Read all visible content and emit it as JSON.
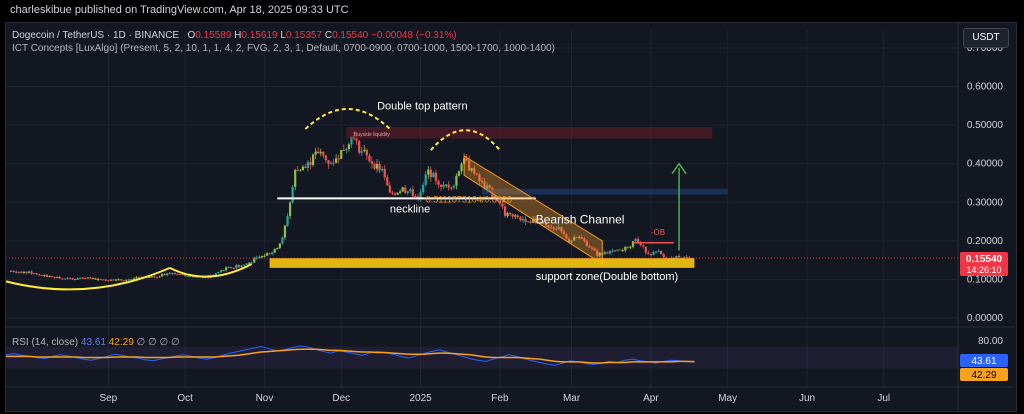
{
  "header": {
    "publisher": "charleskibue published on TradingView.com, Apr 18, 2025 09:33 UTC"
  },
  "symbol_line": {
    "name": "Dogecoin / TetherUS · 1D · BINANCE",
    "o_label": "O",
    "o_value": "0.15589",
    "h_label": "H",
    "h_value": "0.15619",
    "l_label": "L",
    "l_value": "0.15357",
    "c_label": "C",
    "c_value": "0.15540",
    "change": "−0.00048 (−0.31%)"
  },
  "indicator_line": "ICT Concepts [LuxAlgo] (Present, 5, 2, 10, 1, 1, 4, 2, FVG, 2, 3, 1, Default, 0700-0900, 0700-1000, 1500-1700, 1000-1400)",
  "currency_button": "USDT",
  "annotations": {
    "double_top": "Double top pattern",
    "neckline": "neckline",
    "bearish_channel": "Bearish Channel",
    "support_zone": "support zone(Double bottom)",
    "ob": "-OB",
    "buyside": "Buyside liquidity",
    "fib_text": "0.5111873104/0.8626"
  },
  "price_badge": {
    "price": "0.15540",
    "countdown": "14:26:10"
  },
  "rsi": {
    "label": "RSI (14, close)",
    "value1": "43.61",
    "value2": "42.29",
    "extra": "∅ ∅ ∅ ∅",
    "upper_level": "80.00",
    "values": [
      55,
      57,
      54,
      52,
      50,
      48,
      52,
      55,
      53,
      50,
      47,
      45,
      48,
      52,
      56,
      54,
      51,
      49,
      46,
      44,
      47,
      50,
      53,
      55,
      52,
      49,
      47,
      50,
      54,
      58,
      61,
      64,
      67,
      70,
      66,
      62,
      64,
      68,
      71,
      69,
      65,
      61,
      58,
      62,
      60,
      57,
      54,
      58,
      61,
      59,
      56,
      52,
      49,
      53,
      57,
      61,
      64,
      60,
      56,
      52,
      48,
      45,
      43,
      47,
      51,
      55,
      52,
      48,
      44,
      41,
      38,
      36,
      40,
      44,
      42,
      39,
      37,
      40,
      43,
      41,
      45,
      47,
      44,
      42,
      40,
      43,
      45,
      44,
      42,
      43.6
    ],
    "signal": [
      52,
      52,
      52,
      52,
      51,
      51,
      51,
      51,
      51,
      51,
      50,
      50,
      50,
      50,
      51,
      51,
      51,
      51,
      50,
      50,
      50,
      50,
      51,
      51,
      51,
      51,
      51,
      51,
      52,
      53,
      54,
      56,
      58,
      60,
      61,
      62,
      63,
      64,
      65,
      65,
      65,
      64,
      63,
      63,
      62,
      61,
      60,
      60,
      59,
      59,
      58,
      57,
      56,
      56,
      56,
      57,
      58,
      58,
      57,
      56,
      55,
      53,
      51,
      50,
      50,
      50,
      50,
      49,
      48,
      47,
      45,
      43,
      42,
      42,
      42,
      41,
      40,
      40,
      41,
      41,
      41,
      42,
      42,
      42,
      42,
      42,
      42,
      43,
      43,
      42.3
    ]
  },
  "colors": {
    "background": "#131722",
    "up": "#26a69a",
    "up_alt": "#8bc34a",
    "down": "#ef5350",
    "rsi_line": "#2962ff",
    "rsi_signal": "#f7a21b",
    "support": "#f9c80e",
    "channel": "#f59a23",
    "target_arrow": "#4caf50",
    "price_badge": "#f23645"
  },
  "chart_data": {
    "type": "candlestick",
    "title": "Dogecoin / TetherUS · 1D · BINANCE",
    "ylabel": "",
    "ylim": [
      0.0,
      0.7
    ],
    "yticks": [
      "0.70000",
      "0.60000",
      "0.50000",
      "0.40000",
      "0.30000",
      "0.20000",
      "0.10000",
      "0.00000"
    ],
    "y_tick_values": [
      0.7,
      0.6,
      0.5,
      0.4,
      0.3,
      0.2,
      0.1,
      0.0
    ],
    "x_tick_labels": [
      "Sep",
      "Oct",
      "Nov",
      "Dec",
      "2025",
      "Feb",
      "Mar",
      "Apr",
      "May",
      "Jun",
      "Jul"
    ],
    "x_tick_dates": [
      "2024-09-01",
      "2024-10-01",
      "2024-11-01",
      "2024-12-01",
      "2025-01-01",
      "2025-02-01",
      "2025-03-01",
      "2025-04-01",
      "2025-05-01",
      "2025-06-01",
      "2025-07-01"
    ],
    "x_start": "2024-07-23",
    "x_end": "2025-07-30",
    "series_close": [
      [
        "2024-07-25",
        0.122
      ],
      [
        "2024-08-01",
        0.118
      ],
      [
        "2024-08-08",
        0.108
      ],
      [
        "2024-08-15",
        0.101
      ],
      [
        "2024-08-22",
        0.104
      ],
      [
        "2024-08-29",
        0.1
      ],
      [
        "2024-09-05",
        0.098
      ],
      [
        "2024-09-12",
        0.103
      ],
      [
        "2024-09-19",
        0.106
      ],
      [
        "2024-09-26",
        0.118
      ],
      [
        "2024-10-03",
        0.108
      ],
      [
        "2024-10-10",
        0.106
      ],
      [
        "2024-10-17",
        0.128
      ],
      [
        "2024-10-24",
        0.138
      ],
      [
        "2024-10-31",
        0.16
      ],
      [
        "2024-11-05",
        0.175
      ],
      [
        "2024-11-08",
        0.205
      ],
      [
        "2024-11-11",
        0.3
      ],
      [
        "2024-11-13",
        0.38
      ],
      [
        "2024-11-17",
        0.39
      ],
      [
        "2024-11-22",
        0.43
      ],
      [
        "2024-11-27",
        0.4
      ],
      [
        "2024-12-02",
        0.44
      ],
      [
        "2024-12-05",
        0.47
      ],
      [
        "2024-12-08",
        0.44
      ],
      [
        "2024-12-12",
        0.41
      ],
      [
        "2024-12-17",
        0.38
      ],
      [
        "2024-12-20",
        0.32
      ],
      [
        "2024-12-25",
        0.335
      ],
      [
        "2024-12-31",
        0.316
      ],
      [
        "2025-01-04",
        0.38
      ],
      [
        "2025-01-07",
        0.36
      ],
      [
        "2025-01-10",
        0.34
      ],
      [
        "2025-01-14",
        0.35
      ],
      [
        "2025-01-18",
        0.42
      ],
      [
        "2025-01-20",
        0.39
      ],
      [
        "2025-01-24",
        0.355
      ],
      [
        "2025-01-28",
        0.33
      ],
      [
        "2025-02-01",
        0.3
      ],
      [
        "2025-02-03",
        0.27
      ],
      [
        "2025-02-07",
        0.26
      ],
      [
        "2025-02-12",
        0.255
      ],
      [
        "2025-02-18",
        0.245
      ],
      [
        "2025-02-24",
        0.23
      ],
      [
        "2025-02-28",
        0.2
      ],
      [
        "2025-03-04",
        0.21
      ],
      [
        "2025-03-08",
        0.185
      ],
      [
        "2025-03-11",
        0.165
      ],
      [
        "2025-03-16",
        0.17
      ],
      [
        "2025-03-21",
        0.175
      ],
      [
        "2025-03-26",
        0.2
      ],
      [
        "2025-03-31",
        0.168
      ],
      [
        "2025-04-04",
        0.17
      ],
      [
        "2025-04-07",
        0.15
      ],
      [
        "2025-04-11",
        0.16
      ],
      [
        "2025-04-15",
        0.156
      ],
      [
        "2025-04-18",
        0.1554
      ]
    ],
    "levels": {
      "neckline": 0.31,
      "support_zone": [
        0.13,
        0.155
      ],
      "buyside_zone": [
        0.465,
        0.495
      ],
      "blue_zone": [
        0.32,
        0.335
      ],
      "target": 0.4,
      "current": 0.1554
    },
    "rsi_panel": {
      "ylim": [
        0,
        100
      ],
      "level": 80.0
    }
  }
}
